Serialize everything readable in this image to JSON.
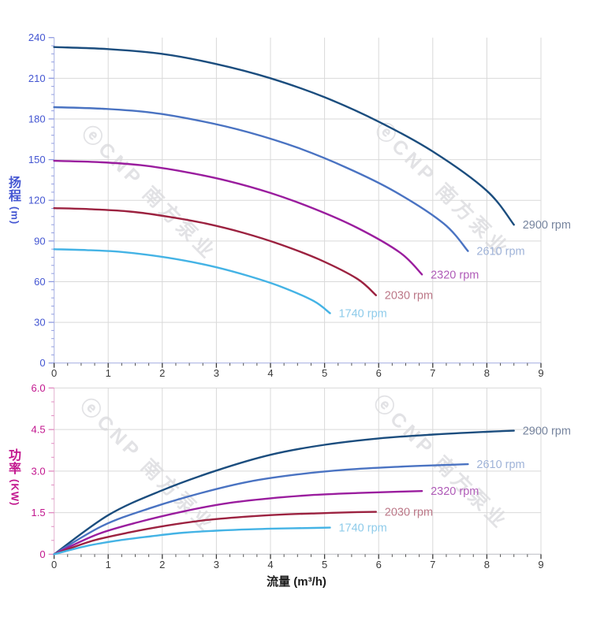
{
  "watermark": {
    "text": "ⓔCNP 南方泵业"
  },
  "grid_color": "#d9d9d9",
  "x_axis": {
    "tick_label_color": "#3a3a3a",
    "minor_tick_color": "#555555",
    "title_color": "#1b1b1b"
  },
  "chart_data": [
    {
      "type": "line",
      "id": "head",
      "ylabel": "扬程 (m)",
      "ylabel_stack": [
        "扬",
        "程"
      ],
      "ylabel_unit": "(m)",
      "xlim": [
        0,
        9
      ],
      "ylim": [
        0,
        240
      ],
      "yticks": [
        0,
        30,
        60,
        90,
        120,
        150,
        180,
        210,
        240
      ],
      "ytick_labels": [
        "0",
        "30",
        "60",
        "90",
        "120",
        "150",
        "180",
        "210",
        "240"
      ],
      "y_minor_step": 6,
      "xticks": [
        0,
        1,
        2,
        3,
        4,
        5,
        6,
        7,
        8,
        9
      ],
      "xtick_labels": [
        "0",
        "1",
        "2",
        "3",
        "4",
        "5",
        "6",
        "7",
        "8",
        "9"
      ],
      "x_minor_step": 0.25,
      "grid_x": [
        1,
        2,
        3,
        4,
        5,
        6,
        7,
        8,
        9
      ],
      "grid_y": [
        30,
        60,
        90,
        120,
        150,
        180,
        210
      ],
      "axis_text_color": "#4456d2",
      "tick_color": "#8e9ae0",
      "axis_line_color": "#b8c0e8",
      "x_axis_line_color": "#aeb6e4",
      "series": [
        {
          "name": "2900 rpm",
          "color": "#1b4d7e",
          "label_color": "#76849e",
          "points": [
            [
              0,
              233
            ],
            [
              1,
              231.5
            ],
            [
              2,
              228
            ],
            [
              3,
              220.5
            ],
            [
              4,
              210
            ],
            [
              5,
              196
            ],
            [
              6,
              178
            ],
            [
              7,
              156
            ],
            [
              8,
              127
            ],
            [
              8.5,
              102
            ]
          ]
        },
        {
          "name": "2610 rpm",
          "color": "#4a73c2",
          "label_color": "#9fb3d8",
          "points": [
            [
              0,
              188.7
            ],
            [
              0.9,
              187.5
            ],
            [
              1.8,
              184.7
            ],
            [
              2.7,
              178.6
            ],
            [
              3.6,
              170.1
            ],
            [
              4.5,
              158.8
            ],
            [
              5.4,
              144.2
            ],
            [
              6.3,
              126.4
            ],
            [
              7.2,
              102.9
            ],
            [
              7.65,
              82.6
            ]
          ]
        },
        {
          "name": "2320 rpm",
          "color": "#9a1d9e",
          "label_color": "#b05cb8",
          "points": [
            [
              0,
              149.1
            ],
            [
              0.8,
              148.2
            ],
            [
              1.6,
              145.9
            ],
            [
              2.4,
              141.1
            ],
            [
              3.2,
              134.4
            ],
            [
              4,
              125.4
            ],
            [
              4.8,
              113.9
            ],
            [
              5.6,
              99.8
            ],
            [
              6.4,
              81.3
            ],
            [
              6.8,
              65.3
            ]
          ]
        },
        {
          "name": "2030 rpm",
          "color": "#9c2240",
          "label_color": "#bc7888",
          "points": [
            [
              0,
              114.2
            ],
            [
              0.7,
              113.4
            ],
            [
              1.4,
              111.7
            ],
            [
              2.1,
              108
            ],
            [
              2.8,
              102.9
            ],
            [
              3.5,
              96
            ],
            [
              4.2,
              87.2
            ],
            [
              4.9,
              76.4
            ],
            [
              5.6,
              62.2
            ],
            [
              5.95,
              50
            ]
          ]
        },
        {
          "name": "1740 rpm",
          "color": "#44b3e5",
          "label_color": "#8ecbea",
          "points": [
            [
              0,
              83.9
            ],
            [
              0.6,
              83.3
            ],
            [
              1.2,
              82.1
            ],
            [
              1.8,
              79.4
            ],
            [
              2.4,
              75.6
            ],
            [
              3,
              70.6
            ],
            [
              3.6,
              64.1
            ],
            [
              4.2,
              56.2
            ],
            [
              4.8,
              45.7
            ],
            [
              5.1,
              36.7
            ]
          ]
        }
      ]
    },
    {
      "type": "line",
      "id": "power",
      "ylabel": "功率 (KW)",
      "ylabel_stack": [
        "功",
        "率"
      ],
      "ylabel_unit": "(KW)",
      "xlabel": "流量 (m³/h)",
      "xlim": [
        0,
        9
      ],
      "ylim": [
        0,
        6
      ],
      "yticks": [
        0,
        1.5,
        3,
        4.5,
        6
      ],
      "ytick_labels": [
        "0",
        "1.5",
        "3.0",
        "4.5",
        "6.0"
      ],
      "y_minor_step": 0.5,
      "xticks": [
        0,
        1,
        2,
        3,
        4,
        5,
        6,
        7,
        8,
        9
      ],
      "xtick_labels": [
        "0",
        "1",
        "2",
        "3",
        "4",
        "5",
        "6",
        "7",
        "8",
        "9"
      ],
      "x_minor_step": 0.25,
      "grid_x": [
        1,
        2,
        3,
        4,
        5,
        6,
        7,
        8,
        9
      ],
      "grid_y": [
        1.5,
        3,
        4.5,
        6
      ],
      "axis_text_color": "#c2168e",
      "tick_color": "#e088c0",
      "axis_line_color": "#e8c0d8",
      "x_axis_line_color": "#c9cacf",
      "series": [
        {
          "name": "2900 rpm",
          "color": "#1b4d7e",
          "label_color": "#76849e",
          "points": [
            [
              0,
              0
            ],
            [
              1,
              1.41
            ],
            [
              2,
              2.31
            ],
            [
              3,
              3.02
            ],
            [
              4,
              3.59
            ],
            [
              5,
              3.95
            ],
            [
              6,
              4.18
            ],
            [
              7,
              4.32
            ],
            [
              8,
              4.42
            ],
            [
              8.5,
              4.46
            ]
          ]
        },
        {
          "name": "2610 rpm",
          "color": "#4a73c2",
          "label_color": "#9fb3d8",
          "points": [
            [
              0,
              0
            ],
            [
              0.9,
              1.03
            ],
            [
              1.8,
              1.68
            ],
            [
              2.7,
              2.2
            ],
            [
              3.6,
              2.62
            ],
            [
              4.5,
              2.88
            ],
            [
              5.4,
              3.05
            ],
            [
              6.3,
              3.15
            ],
            [
              7.2,
              3.22
            ],
            [
              7.65,
              3.25
            ]
          ]
        },
        {
          "name": "2320 rpm",
          "color": "#9a1d9e",
          "label_color": "#b05cb8",
          "points": [
            [
              0,
              0
            ],
            [
              0.8,
              0.72
            ],
            [
              1.6,
              1.18
            ],
            [
              2.4,
              1.55
            ],
            [
              3.2,
              1.84
            ],
            [
              4,
              2.02
            ],
            [
              4.8,
              2.14
            ],
            [
              5.6,
              2.21
            ],
            [
              6.4,
              2.26
            ],
            [
              6.8,
              2.28
            ]
          ]
        },
        {
          "name": "2030 rpm",
          "color": "#9c2240",
          "label_color": "#bc7888",
          "points": [
            [
              0,
              0
            ],
            [
              0.7,
              0.48
            ],
            [
              1.4,
              0.79
            ],
            [
              2.1,
              1.04
            ],
            [
              2.8,
              1.23
            ],
            [
              3.5,
              1.35
            ],
            [
              4.2,
              1.43
            ],
            [
              4.9,
              1.48
            ],
            [
              5.6,
              1.52
            ],
            [
              5.95,
              1.53
            ]
          ]
        },
        {
          "name": "1740 rpm",
          "color": "#44b3e5",
          "label_color": "#8ecbea",
          "points": [
            [
              0,
              0
            ],
            [
              0.6,
              0.3
            ],
            [
              1.2,
              0.5
            ],
            [
              1.8,
              0.65
            ],
            [
              2.4,
              0.78
            ],
            [
              3,
              0.85
            ],
            [
              3.6,
              0.9
            ],
            [
              4.2,
              0.93
            ],
            [
              4.8,
              0.95
            ],
            [
              5.1,
              0.96
            ]
          ]
        }
      ]
    }
  ]
}
